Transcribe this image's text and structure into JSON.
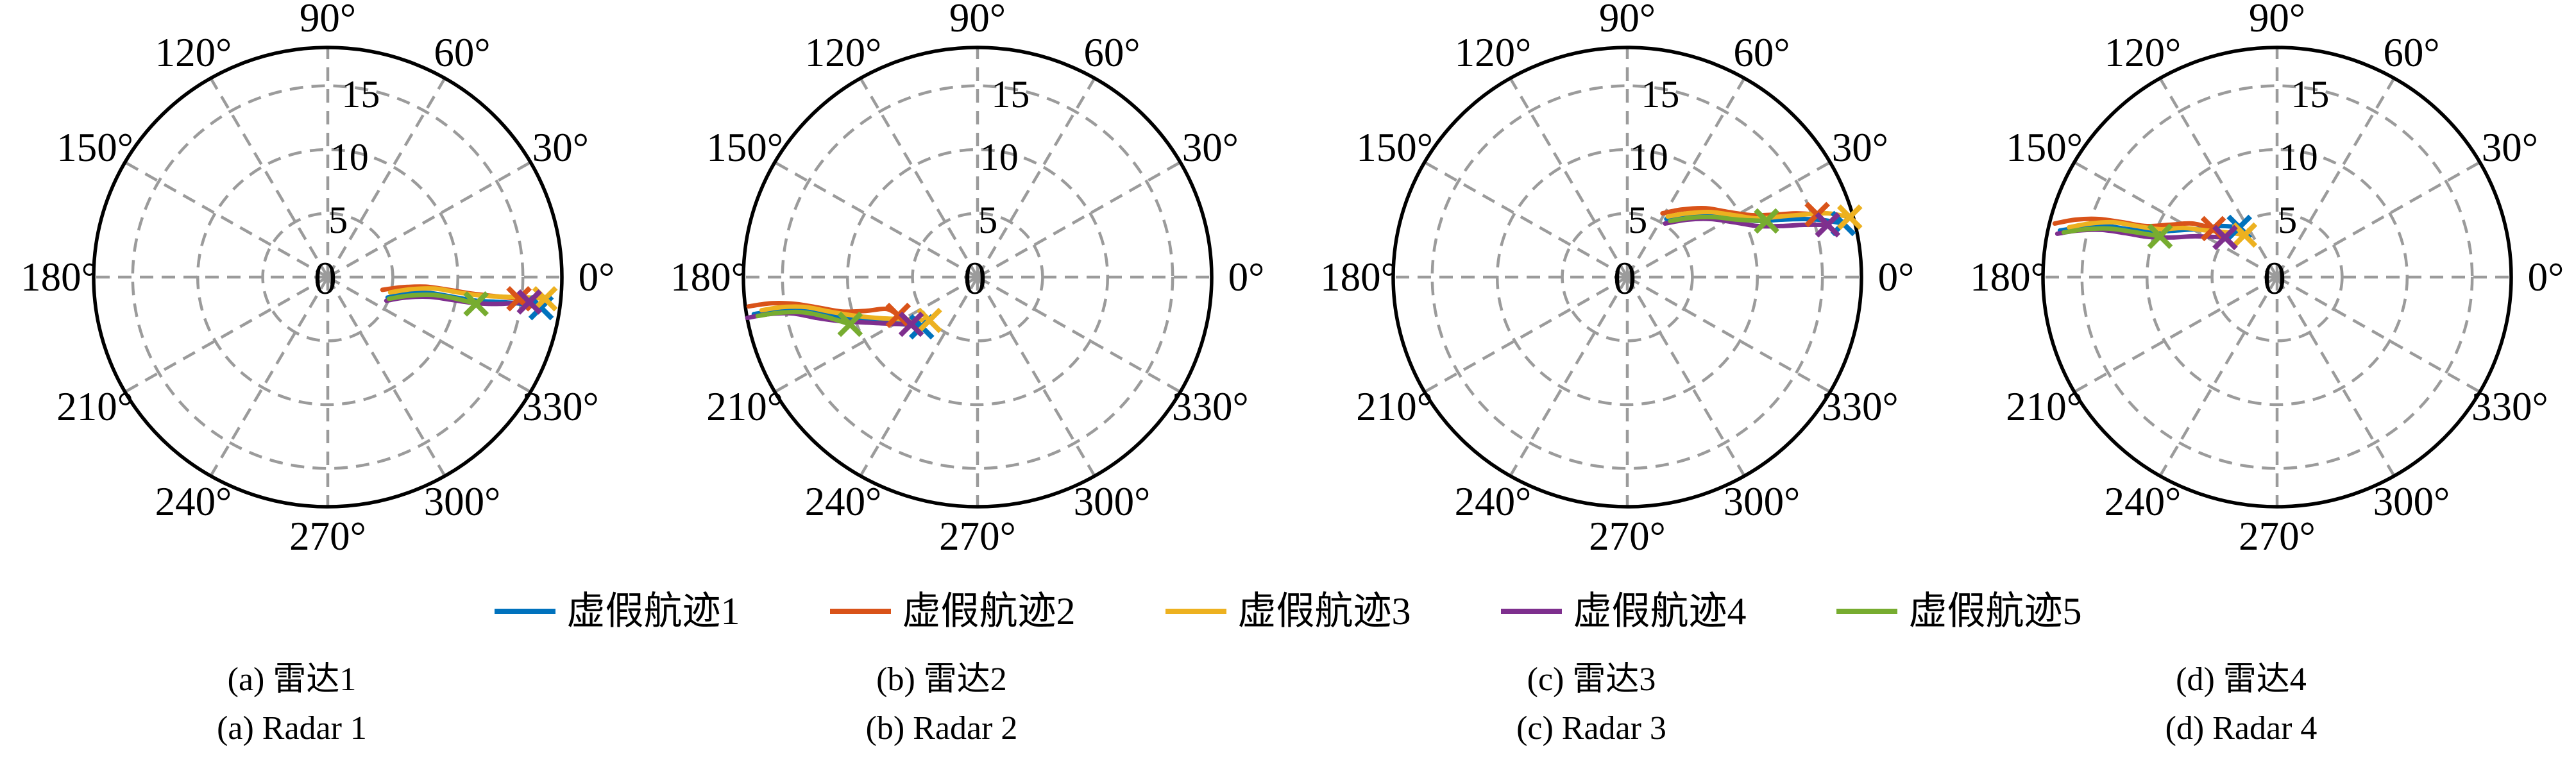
{
  "page": {
    "background": "#ffffff"
  },
  "polar": {
    "rmax": 18,
    "radial_ticks": [
      5,
      10,
      15
    ],
    "radial_tick_labels": [
      "5",
      "10",
      "15"
    ],
    "center_label": "0",
    "angle_step_deg": 30,
    "angle_labels": [
      "0°",
      "30°",
      "60°",
      "90°",
      "120°",
      "150°",
      "180°",
      "210°",
      "240°",
      "270°",
      "300°",
      "330°"
    ],
    "grid_color": "#9b9b9b",
    "axis_color": "#000000"
  },
  "legend": {
    "entries": [
      {
        "label": "虚假航迹1",
        "color": "#0072BD"
      },
      {
        "label": "虚假航迹2",
        "color": "#D95319"
      },
      {
        "label": "虚假航迹3",
        "color": "#EDB120"
      },
      {
        "label": "虚假航迹4",
        "color": "#7E2F8E"
      },
      {
        "label": "虚假航迹5",
        "color": "#77AC30"
      }
    ]
  },
  "captions": [
    {
      "zh": "(a) 雷达1",
      "en": "(a) Radar 1"
    },
    {
      "zh": "(b) 雷达2",
      "en": "(b) Radar 2"
    },
    {
      "zh": "(c) 雷达3",
      "en": "(c) Radar 3"
    },
    {
      "zh": "(d) 雷达4",
      "en": "(d) Radar 4"
    }
  ],
  "chart_data": [
    {
      "type": "line",
      "projection": "polar",
      "title": "(a) 雷达1 / Radar 1",
      "rmax": 18,
      "radial_ticks": [
        5,
        10,
        15
      ],
      "grid": true,
      "legend_position": "below-figure",
      "end_marker": "x",
      "series": [
        {
          "name": "虚假航迹1",
          "color": "#0072BD",
          "points_xy": [
            [
              4.6,
              -1.6
            ],
            [
              6.0,
              -1.3
            ],
            [
              7.8,
              -1.25
            ],
            [
              9.6,
              -1.55
            ],
            [
              11.4,
              -1.85
            ],
            [
              13.2,
              -1.95
            ],
            [
              14.9,
              -2.1
            ],
            [
              16.4,
              -2.4
            ]
          ]
        },
        {
          "name": "虚假航迹2",
          "color": "#D95319",
          "points_xy": [
            [
              4.2,
              -1.0
            ],
            [
              5.7,
              -0.8
            ],
            [
              7.5,
              -0.75
            ],
            [
              9.3,
              -1.0
            ],
            [
              11.1,
              -1.3
            ],
            [
              12.9,
              -1.5
            ],
            [
              14.7,
              -1.7
            ]
          ]
        },
        {
          "name": "虚假航迹3",
          "color": "#EDB120",
          "points_xy": [
            [
              4.8,
              -1.2
            ],
            [
              6.4,
              -0.95
            ],
            [
              8.2,
              -0.9
            ],
            [
              10.0,
              -1.2
            ],
            [
              11.8,
              -1.45
            ],
            [
              13.6,
              -1.55
            ],
            [
              15.4,
              -1.6
            ],
            [
              16.7,
              -1.7
            ]
          ]
        },
        {
          "name": "虚假航迹4",
          "color": "#7E2F8E",
          "points_xy": [
            [
              4.5,
              -1.85
            ],
            [
              6.0,
              -1.6
            ],
            [
              7.8,
              -1.55
            ],
            [
              9.6,
              -1.8
            ],
            [
              11.4,
              -2.05
            ],
            [
              13.2,
              -2.1
            ],
            [
              15.5,
              -1.95
            ]
          ]
        },
        {
          "name": "虚假航迹5",
          "color": "#77AC30",
          "points_xy": [
            [
              4.7,
              -1.7
            ],
            [
              6.3,
              -1.45
            ],
            [
              8.1,
              -1.4
            ],
            [
              9.9,
              -1.7
            ],
            [
              11.4,
              -2.1
            ]
          ]
        }
      ]
    },
    {
      "type": "line",
      "projection": "polar",
      "title": "(b) 雷达2 / Radar 2",
      "rmax": 18,
      "radial_ticks": [
        5,
        10,
        15
      ],
      "grid": true,
      "legend_position": "below-figure",
      "end_marker": "x",
      "series": [
        {
          "name": "虚假航迹1",
          "color": "#0072BD",
          "points_xy": [
            [
              -17.2,
              -2.9
            ],
            [
              -15.6,
              -2.65
            ],
            [
              -13.8,
              -2.6
            ],
            [
              -12.0,
              -2.9
            ],
            [
              -10.2,
              -3.2
            ],
            [
              -8.4,
              -3.3
            ],
            [
              -6.6,
              -3.6
            ],
            [
              -5.2,
              -3.75
            ],
            [
              -4.3,
              -3.9
            ]
          ]
        },
        {
          "name": "虚假航迹2",
          "color": "#D95319",
          "points_xy": [
            [
              -17.6,
              -2.3
            ],
            [
              -15.8,
              -2.05
            ],
            [
              -14.0,
              -2.1
            ],
            [
              -12.2,
              -2.4
            ],
            [
              -10.4,
              -2.7
            ],
            [
              -8.6,
              -2.65
            ],
            [
              -7.0,
              -2.5
            ],
            [
              -6.1,
              -3.0
            ]
          ]
        },
        {
          "name": "虚假航迹3",
          "color": "#EDB120",
          "points_xy": [
            [
              -16.6,
              -2.6
            ],
            [
              -15.0,
              -2.35
            ],
            [
              -13.2,
              -2.35
            ],
            [
              -11.4,
              -2.7
            ],
            [
              -9.6,
              -3.0
            ],
            [
              -7.8,
              -3.2
            ],
            [
              -5.9,
              -3.3
            ],
            [
              -3.7,
              -3.4
            ]
          ]
        },
        {
          "name": "虚假航迹4",
          "color": "#7E2F8E",
          "points_xy": [
            [
              -17.7,
              -3.2
            ],
            [
              -16.0,
              -2.9
            ],
            [
              -14.2,
              -2.85
            ],
            [
              -12.4,
              -3.2
            ],
            [
              -10.6,
              -3.45
            ],
            [
              -8.8,
              -3.55
            ],
            [
              -6.9,
              -3.65
            ],
            [
              -5.1,
              -3.7
            ]
          ]
        },
        {
          "name": "虚假航迹5",
          "color": "#77AC30",
          "points_xy": [
            [
              -16.9,
              -3.05
            ],
            [
              -15.3,
              -2.8
            ],
            [
              -13.5,
              -2.75
            ],
            [
              -11.7,
              -3.1
            ],
            [
              -9.8,
              -3.7
            ]
          ]
        }
      ]
    },
    {
      "type": "line",
      "projection": "polar",
      "title": "(c) 雷达3 / Radar 3",
      "rmax": 18,
      "radial_ticks": [
        5,
        10,
        15
      ],
      "grid": true,
      "legend_position": "below-figure",
      "end_marker": "x",
      "series": [
        {
          "name": "虚假航迹1",
          "color": "#0072BD",
          "points_xy": [
            [
              3.0,
              4.55
            ],
            [
              4.6,
              4.8
            ],
            [
              6.4,
              4.9
            ],
            [
              8.2,
              4.65
            ],
            [
              10.0,
              4.4
            ],
            [
              11.8,
              4.5
            ],
            [
              13.6,
              4.55
            ],
            [
              15.2,
              4.45
            ],
            [
              16.6,
              4.2
            ]
          ]
        },
        {
          "name": "虚假航迹2",
          "color": "#D95319",
          "points_xy": [
            [
              2.7,
              5.0
            ],
            [
              4.2,
              5.3
            ],
            [
              6.0,
              5.4
            ],
            [
              7.8,
              5.1
            ],
            [
              9.6,
              4.85
            ],
            [
              11.4,
              4.9
            ],
            [
              13.0,
              5.0
            ],
            [
              14.6,
              4.9
            ]
          ]
        },
        {
          "name": "虚假航迹3",
          "color": "#EDB120",
          "points_xy": [
            [
              3.1,
              4.75
            ],
            [
              4.6,
              5.0
            ],
            [
              6.4,
              5.1
            ],
            [
              8.2,
              4.85
            ],
            [
              10.0,
              4.6
            ],
            [
              11.8,
              4.75
            ],
            [
              13.6,
              4.9
            ],
            [
              15.4,
              5.0
            ],
            [
              17.1,
              4.7
            ]
          ]
        },
        {
          "name": "虚假航迹4",
          "color": "#7E2F8E",
          "points_xy": [
            [
              2.9,
              4.2
            ],
            [
              4.6,
              4.5
            ],
            [
              6.4,
              4.55
            ],
            [
              8.2,
              4.3
            ],
            [
              10.0,
              4.0
            ],
            [
              11.8,
              4.0
            ],
            [
              13.6,
              4.1
            ],
            [
              15.4,
              4.1
            ]
          ]
        },
        {
          "name": "虚假航迹5",
          "color": "#77AC30",
          "points_xy": [
            [
              3.3,
              4.4
            ],
            [
              4.9,
              4.65
            ],
            [
              6.7,
              4.7
            ],
            [
              8.5,
              4.5
            ],
            [
              10.7,
              4.4
            ]
          ]
        }
      ]
    },
    {
      "type": "line",
      "projection": "polar",
      "title": "(d) 雷达4 / Radar 4",
      "rmax": 18,
      "radial_ticks": [
        5,
        10,
        15
      ],
      "grid": true,
      "legend_position": "below-figure",
      "end_marker": "x",
      "series": [
        {
          "name": "虚假航迹1",
          "color": "#0072BD",
          "points_xy": [
            [
              -16.7,
              3.65
            ],
            [
              -15.0,
              3.9
            ],
            [
              -13.2,
              4.0
            ],
            [
              -11.4,
              3.75
            ],
            [
              -9.6,
              3.55
            ],
            [
              -7.8,
              3.65
            ],
            [
              -5.9,
              3.8
            ],
            [
              -4.3,
              4.0
            ],
            [
              -2.9,
              3.9
            ]
          ]
        },
        {
          "name": "虚假航迹2",
          "color": "#D95319",
          "points_xy": [
            [
              -17.1,
              4.2
            ],
            [
              -15.5,
              4.5
            ],
            [
              -13.7,
              4.55
            ],
            [
              -11.9,
              4.3
            ],
            [
              -10.1,
              4.0
            ],
            [
              -8.3,
              4.1
            ],
            [
              -6.5,
              4.2
            ],
            [
              -4.9,
              3.8
            ]
          ]
        },
        {
          "name": "虚假航迹3",
          "color": "#EDB120",
          "points_xy": [
            [
              -16.0,
              3.9
            ],
            [
              -14.4,
              4.2
            ],
            [
              -12.6,
              4.3
            ],
            [
              -10.8,
              4.0
            ],
            [
              -9.0,
              3.75
            ],
            [
              -7.2,
              3.85
            ],
            [
              -5.4,
              3.65
            ],
            [
              -3.8,
              3.5
            ],
            [
              -2.5,
              3.3
            ]
          ]
        },
        {
          "name": "虚假航迹4",
          "color": "#7E2F8E",
          "points_xy": [
            [
              -16.9,
              3.4
            ],
            [
              -15.3,
              3.65
            ],
            [
              -13.5,
              3.7
            ],
            [
              -11.7,
              3.45
            ],
            [
              -9.9,
              3.15
            ],
            [
              -8.1,
              3.1
            ],
            [
              -6.3,
              3.2
            ],
            [
              -4.0,
              3.1
            ]
          ]
        },
        {
          "name": "虚假航迹5",
          "color": "#77AC30",
          "points_xy": [
            [
              -16.4,
              3.5
            ],
            [
              -14.7,
              3.75
            ],
            [
              -12.9,
              3.8
            ],
            [
              -11.1,
              3.55
            ],
            [
              -9.0,
              3.2
            ]
          ]
        }
      ]
    }
  ]
}
